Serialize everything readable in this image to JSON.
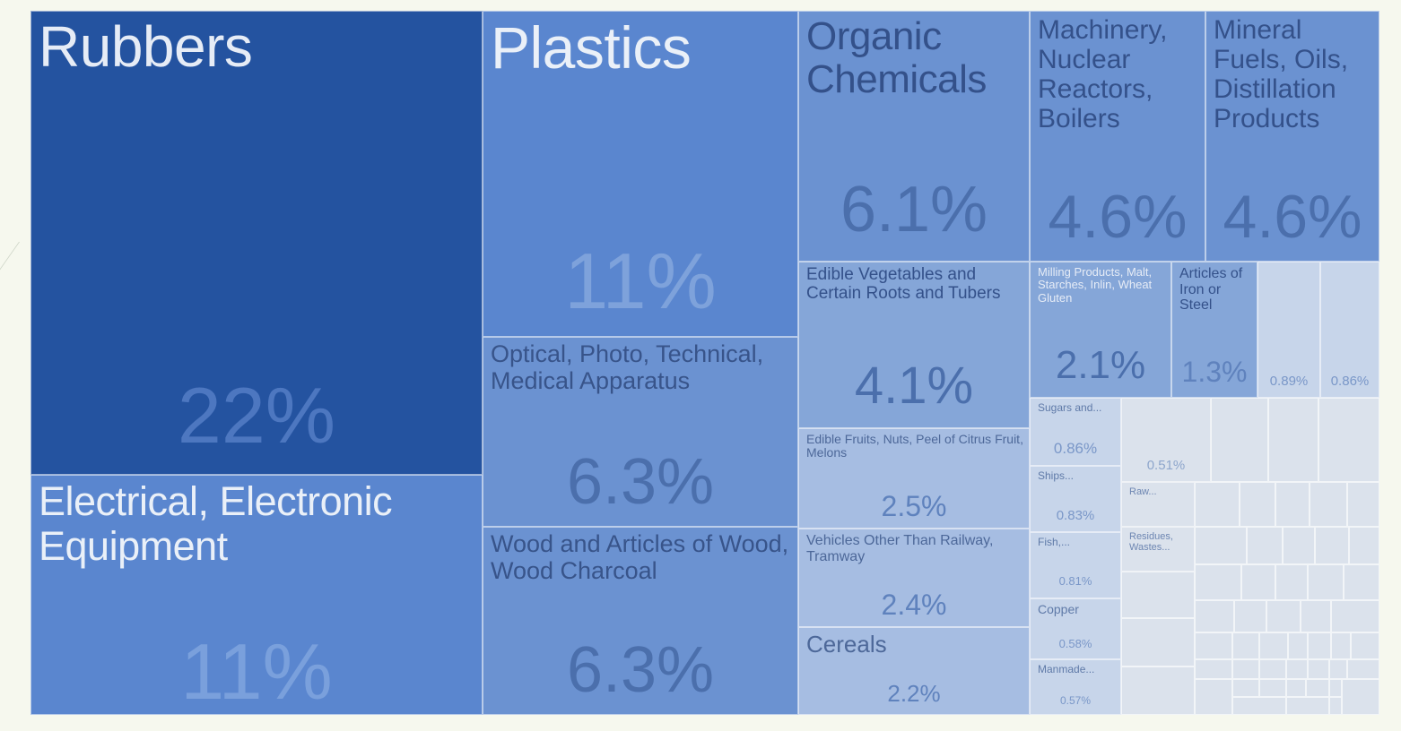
{
  "chart_data": {
    "type": "treemap",
    "title": "",
    "colors": {
      "darkest": "#2453a0",
      "dark": "#5a86cf",
      "mid": "#6b92d1",
      "light": "#85a6d8",
      "lighter": "#a6bde2",
      "lightest": "#c7d5ea",
      "pale": "#dbe2ec"
    },
    "items": [
      {
        "label": "Rubbers",
        "pct": "22%",
        "value": 22
      },
      {
        "label": "Electrical, Electronic Equipment",
        "pct": "11%",
        "value": 11
      },
      {
        "label": "Plastics",
        "pct": "11%",
        "value": 11
      },
      {
        "label": "Optical, Photo, Technical, Medical Apparatus",
        "pct": "6.3%",
        "value": 6.3
      },
      {
        "label": "Wood and Articles of Wood, Wood Charcoal",
        "pct": "6.3%",
        "value": 6.3
      },
      {
        "label": "Organic Chemicals",
        "pct": "6.1%",
        "value": 6.1
      },
      {
        "label": "Machinery, Nuclear Reactors, Boilers",
        "pct": "4.6%",
        "value": 4.6
      },
      {
        "label": "Mineral Fuels, Oils, Distillation Products",
        "pct": "4.6%",
        "value": 4.6
      },
      {
        "label": "Edible Vegetables and Certain Roots and Tubers",
        "pct": "4.1%",
        "value": 4.1
      },
      {
        "label": "Edible Fruits, Nuts, Peel of Citrus Fruit, Melons",
        "pct": "2.5%",
        "value": 2.5
      },
      {
        "label": "Vehicles Other Than Railway, Tramway",
        "pct": "2.4%",
        "value": 2.4
      },
      {
        "label": "Cereals",
        "pct": "2.2%",
        "value": 2.2
      },
      {
        "label": "Milling Products, Malt, Starches, Inlin, Wheat Gluten",
        "pct": "2.1%",
        "value": 2.1
      },
      {
        "label": "Articles of Iron or Steel",
        "pct": "1.3%",
        "value": 1.3
      },
      {
        "label": "",
        "pct": "0.89%",
        "value": 0.89
      },
      {
        "label": "",
        "pct": "0.86%",
        "value": 0.86
      },
      {
        "label": "Sugars and...",
        "pct": "0.86%",
        "value": 0.86
      },
      {
        "label": "Ships...",
        "pct": "0.83%",
        "value": 0.83
      },
      {
        "label": "Fish,...",
        "pct": "0.81%",
        "value": 0.81
      },
      {
        "label": "Copper",
        "pct": "0.58%",
        "value": 0.58
      },
      {
        "label": "Manmade...",
        "pct": "0.57%",
        "value": 0.57
      },
      {
        "label": "",
        "pct": "0.51%",
        "value": 0.51
      },
      {
        "label": "Raw...",
        "pct": "",
        "value": null
      },
      {
        "label": "Residues, Wastes...",
        "pct": "",
        "value": null
      }
    ]
  }
}
